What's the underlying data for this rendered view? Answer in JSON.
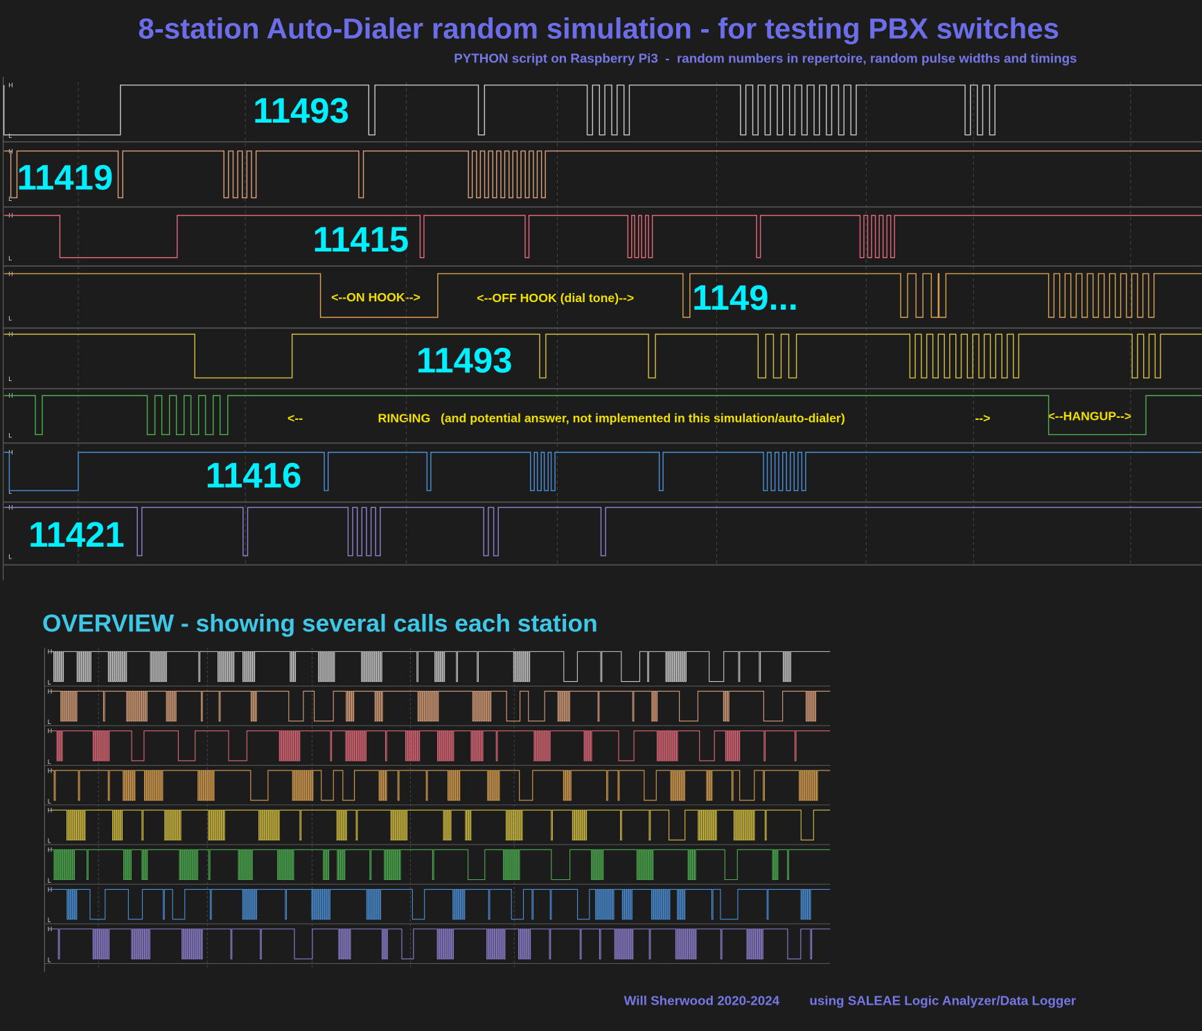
{
  "header": {
    "title": "8-station Auto-Dialer random simulation - for testing PBX switches",
    "subtitle": "PYTHON script on Raspberry Pi3  -  random numbers in repertoire, random pulse widths and timings"
  },
  "levels": {
    "high": "H",
    "low": "L"
  },
  "station_numbers": [
    "11493",
    "11419",
    "11415",
    "1149...",
    "11493",
    "11416",
    "11421"
  ],
  "annotations": {
    "on_hook": "<--ON HOOK-->",
    "off_hook": "<--OFF HOOK (dial tone)-->",
    "ringing_start": "<--",
    "ringing": "RINGING   (and potential answer, not implemented in this simulation/auto-dialer)",
    "ringing_end": "-->",
    "hangup": "<--HANGUP-->"
  },
  "overview": {
    "title": "OVERVIEW - showing several calls each station"
  },
  "footer": {
    "author": "Will Sherwood 2020-2024",
    "tool": "using SALEAE Logic Analyzer/Data Logger"
  }
}
